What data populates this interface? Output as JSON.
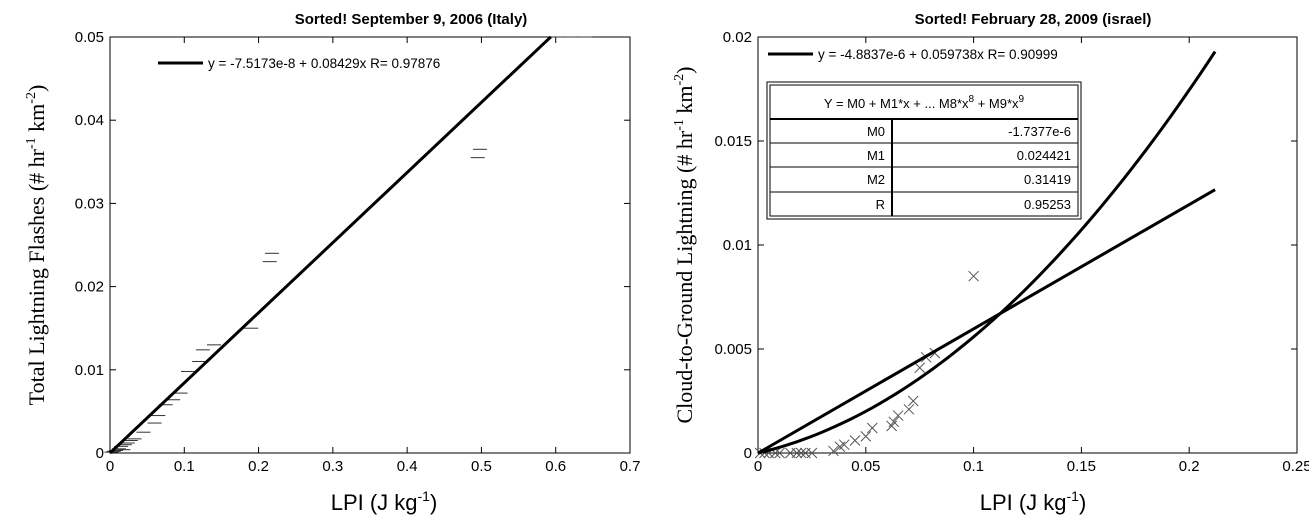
{
  "chart_data": [
    {
      "type": "scatter",
      "title": "Sorted! September 9, 2006 (Italy)",
      "xlabel": "LPI (J kg",
      "xlabel_sup": "-1",
      "xlabel_end": ")",
      "ylabel_parts": [
        "Total Lightning Flashes (# hr",
        "-1",
        " km",
        "-2",
        ")"
      ],
      "xlim": [
        0,
        0.7
      ],
      "ylim": [
        0,
        0.05
      ],
      "xticks": [
        "0",
        "0.1",
        "0.2",
        "0.3",
        "0.4",
        "0.5",
        "0.6",
        "0.7"
      ],
      "yticks": [
        "0",
        "0.01",
        "0.02",
        "0.03",
        "0.04",
        "0.05"
      ],
      "grid": false,
      "marker": "horizontal-dash",
      "points": [
        [
          0.002,
          0.0001
        ],
        [
          0.005,
          0.0002
        ],
        [
          0.008,
          0.0003
        ],
        [
          0.012,
          0.0005
        ],
        [
          0.015,
          0.0008
        ],
        [
          0.018,
          0.0004
        ],
        [
          0.02,
          0.001
        ],
        [
          0.024,
          0.0012
        ],
        [
          0.028,
          0.0015
        ],
        [
          0.033,
          0.0017
        ],
        [
          0.045,
          0.0025
        ],
        [
          0.06,
          0.0036
        ],
        [
          0.065,
          0.0045
        ],
        [
          0.075,
          0.0058
        ],
        [
          0.085,
          0.0064
        ],
        [
          0.095,
          0.0072
        ],
        [
          0.105,
          0.0098
        ],
        [
          0.12,
          0.011
        ],
        [
          0.125,
          0.0124
        ],
        [
          0.14,
          0.013
        ],
        [
          0.19,
          0.015
        ],
        [
          0.215,
          0.023
        ],
        [
          0.218,
          0.024
        ],
        [
          0.495,
          0.0355
        ],
        [
          0.498,
          0.0365
        ],
        [
          0.6,
          0.05
        ],
        [
          0.62,
          0.05
        ],
        [
          0.64,
          0.05
        ]
      ],
      "fit_line": {
        "label": "y = -7.5173e-8 + 0.08429x   R= 0.97876",
        "intercept": -7.5173e-08,
        "slope": 0.08429,
        "x_range": [
          0,
          0.5935
        ]
      }
    },
    {
      "type": "scatter",
      "title": "Sorted! February 28, 2009 (israel)",
      "xlabel": "LPI (J kg",
      "xlabel_sup": "-1",
      "xlabel_end": ")",
      "ylabel_parts": [
        "Cloud-to-Ground Lightning (# hr",
        "-1",
        " km",
        "-2",
        ")"
      ],
      "xlim": [
        0,
        0.25
      ],
      "ylim": [
        0,
        0.02
      ],
      "xticks": [
        "0",
        "0.05",
        "0.1",
        "0.15",
        "0.2",
        "0.25"
      ],
      "yticks": [
        "0",
        "0.005",
        "0.01",
        "0.015",
        "0.02"
      ],
      "grid": false,
      "marker": "x",
      "points": [
        [
          0.001,
          0.0
        ],
        [
          0.003,
          0.0
        ],
        [
          0.005,
          0.0
        ],
        [
          0.008,
          0.0
        ],
        [
          0.01,
          0.0
        ],
        [
          0.015,
          0.0
        ],
        [
          0.018,
          0.0
        ],
        [
          0.02,
          0.0
        ],
        [
          0.022,
          0.0
        ],
        [
          0.025,
          0.0
        ],
        [
          0.035,
          0.0001
        ],
        [
          0.038,
          0.0003
        ],
        [
          0.04,
          0.0004
        ],
        [
          0.045,
          0.0006
        ],
        [
          0.05,
          0.0008
        ],
        [
          0.053,
          0.0012
        ],
        [
          0.062,
          0.0013
        ],
        [
          0.063,
          0.0015
        ],
        [
          0.065,
          0.0018
        ],
        [
          0.07,
          0.0021
        ],
        [
          0.072,
          0.0025
        ],
        [
          0.075,
          0.0041
        ],
        [
          0.078,
          0.0046
        ],
        [
          0.082,
          0.0048
        ],
        [
          0.1,
          0.0085
        ]
      ],
      "fit_line": {
        "label": "y = -4.8837e-6 + 0.059738x   R= 0.90999",
        "intercept": -4.8837e-06,
        "slope": 0.059738,
        "x_range": [
          0,
          0.212
        ]
      },
      "poly_fit": {
        "coefficients": [
          -1.7377e-06,
          0.024421,
          0.31419
        ],
        "x_range": [
          0,
          0.212
        ],
        "table_header": "Y = M0 + M1*x + ... M8*x",
        "table_header_sup1": "8",
        "table_header_mid": " + M9*x",
        "table_header_sup2": "9",
        "rows": [
          {
            "name": "M0",
            "value": "-1.7377e-6"
          },
          {
            "name": "M1",
            "value": "0.024421"
          },
          {
            "name": "M2",
            "value": "0.31419"
          },
          {
            "name": "R",
            "value": "0.95253"
          }
        ]
      }
    }
  ]
}
